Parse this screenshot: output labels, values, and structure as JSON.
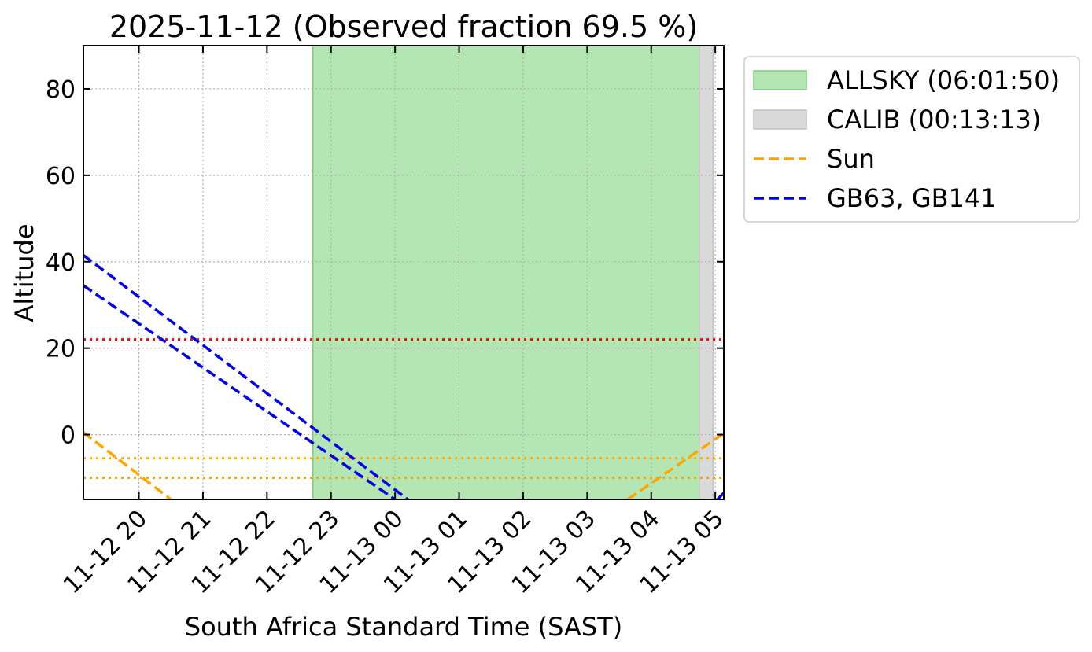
{
  "chart_data": {
    "type": "line",
    "title": "2025-11-12 (Observed fraction 69.5 %)",
    "xlabel": "South Africa Standard Time (SAST)",
    "ylabel": "Altitude",
    "xlim": [
      "2025-11-12 19:08",
      "2025-11-13 05:08"
    ],
    "ylim": [
      -15,
      90
    ],
    "grid": true,
    "legend_placement": "outside upper right",
    "x_ticks": [
      {
        "t": "2025-11-12 20:00",
        "label": "11-12 20"
      },
      {
        "t": "2025-11-12 21:00",
        "label": "11-12 21"
      },
      {
        "t": "2025-11-12 22:00",
        "label": "11-12 22"
      },
      {
        "t": "2025-11-12 23:00",
        "label": "11-12 23"
      },
      {
        "t": "2025-11-13 00:00",
        "label": "11-13 00"
      },
      {
        "t": "2025-11-13 01:00",
        "label": "11-13 01"
      },
      {
        "t": "2025-11-13 02:00",
        "label": "11-13 02"
      },
      {
        "t": "2025-11-13 03:00",
        "label": "11-13 03"
      },
      {
        "t": "2025-11-13 04:00",
        "label": "11-13 04"
      },
      {
        "t": "2025-11-13 05:00",
        "label": "11-13 05"
      }
    ],
    "y_ticks": [
      {
        "v": 0,
        "label": "0"
      },
      {
        "v": 20,
        "label": "20"
      },
      {
        "v": 40,
        "label": "40"
      },
      {
        "v": 60,
        "label": "60"
      },
      {
        "v": 80,
        "label": "80"
      }
    ],
    "spans": [
      {
        "name": "ALLSKY (06:01:50)",
        "start": "2025-11-12 22:43",
        "end": "2025-11-13 04:45",
        "color": "#b3e6b3",
        "edge": "#7fcc7f"
      },
      {
        "name": "CALIB (00:13:13)",
        "start": "2025-11-13 04:45",
        "end": "2025-11-13 04:58",
        "color": "#d9d9d9",
        "edge": "#bfbfbf"
      }
    ],
    "series": [
      {
        "name": "Sun",
        "color": "#ffa500",
        "dash": "dashed",
        "segments": [
          [
            [
              "2025-11-12 19:08",
              0.5
            ],
            [
              "2025-11-12 20:30",
              -15
            ]
          ],
          [
            [
              "2025-11-13 03:38",
              -15
            ],
            [
              "2025-11-13 05:08",
              0.3
            ]
          ]
        ]
      },
      {
        "name": "GB63, GB141",
        "color": "#0000ee",
        "dash": "dashed",
        "segments": [
          [
            [
              "2025-11-12 19:08",
              41.5
            ],
            [
              "2025-11-13 00:12",
              -15
            ]
          ],
          [
            [
              "2025-11-12 19:08",
              34.5
            ],
            [
              "2025-11-13 00:00",
              -15
            ]
          ],
          [
            [
              "2025-11-13 05:02",
              -15
            ],
            [
              "2025-11-13 05:08",
              -13.5
            ]
          ]
        ]
      }
    ],
    "hlines": [
      {
        "y": 22,
        "color": "#ff0000",
        "style": "dotted"
      },
      {
        "y": -5.5,
        "color": "#ffa500",
        "style": "dotted"
      },
      {
        "y": -10,
        "color": "#ffa500",
        "style": "dotted"
      }
    ],
    "legend": [
      {
        "label": "ALLSKY (06:01:50)",
        "kind": "patch",
        "color": "#b3e6b3",
        "edge": "#7fcc7f"
      },
      {
        "label": "CALIB (00:13:13)",
        "kind": "patch",
        "color": "#d9d9d9",
        "edge": "#bfbfbf"
      },
      {
        "label": "Sun",
        "kind": "line",
        "color": "#ffa500"
      },
      {
        "label": "GB63, GB141",
        "kind": "line",
        "color": "#0000ee"
      }
    ]
  }
}
